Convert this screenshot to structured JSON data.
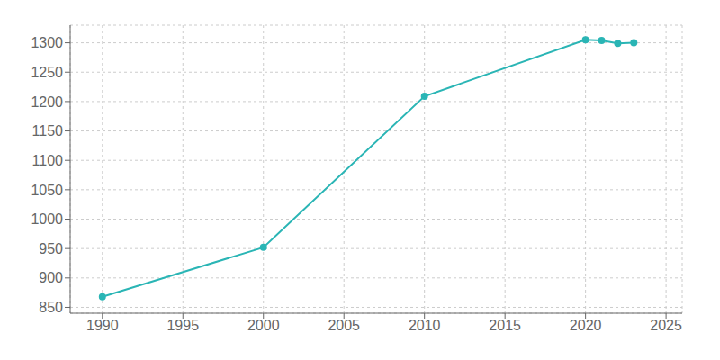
{
  "chart_data": {
    "type": "line",
    "x": [
      1990,
      2000,
      2010,
      2020,
      2021,
      2022,
      2023
    ],
    "values": [
      868,
      952,
      1209,
      1305,
      1304,
      1299,
      1300
    ],
    "color": "#2ab5b5",
    "marker": "circle",
    "xlim": [
      1988,
      2026
    ],
    "ylim": [
      840,
      1330
    ],
    "xticks": [
      1990,
      1995,
      2000,
      2005,
      2010,
      2015,
      2020,
      2025
    ],
    "yticks": [
      850,
      900,
      950,
      1000,
      1050,
      1100,
      1150,
      1200,
      1250,
      1300
    ],
    "grid": true
  }
}
